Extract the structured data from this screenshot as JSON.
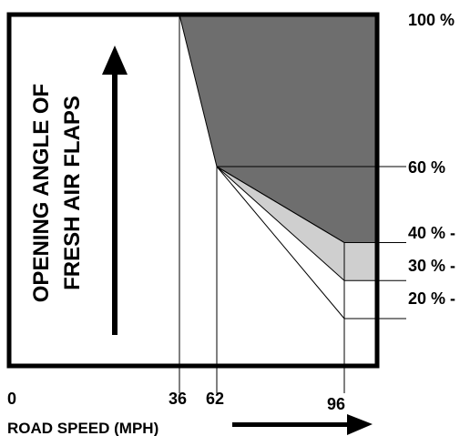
{
  "chart_data": {
    "type": "area",
    "title": "",
    "xlabel": "ROAD SPEED (MPH)",
    "ylabel_lines": [
      "OPENING ANGLE OF",
      "FRESH AIR FLAPS"
    ],
    "x_ticks": [
      "0",
      "36",
      "62",
      "96"
    ],
    "y_ticks": [
      "100 %",
      "60 %",
      "40 % -",
      "30 % -",
      "20 % -"
    ],
    "xlim": [
      0,
      110
    ],
    "ylim": [
      0,
      100
    ],
    "upper_curve": [
      {
        "x": 36,
        "y": 100
      },
      {
        "x": 62,
        "y": 60
      },
      {
        "x": 96,
        "y": 40
      },
      {
        "x": 110,
        "y": 40
      }
    ],
    "branch_lines": [
      {
        "from": {
          "x": 62,
          "y": 60
        },
        "to": {
          "x": 96,
          "y": 40
        },
        "label": "40 % -"
      },
      {
        "from": {
          "x": 62,
          "y": 60
        },
        "to": {
          "x": 96,
          "y": 30
        },
        "label": "30 % -"
      },
      {
        "from": {
          "x": 62,
          "y": 60
        },
        "to": {
          "x": 96,
          "y": 20
        },
        "label": "20 % -"
      }
    ],
    "colors": {
      "dark_region": "#6e6e6e",
      "light_region": "#cfcfcf",
      "lines": "#000000"
    },
    "grid": false,
    "legend": "none"
  }
}
